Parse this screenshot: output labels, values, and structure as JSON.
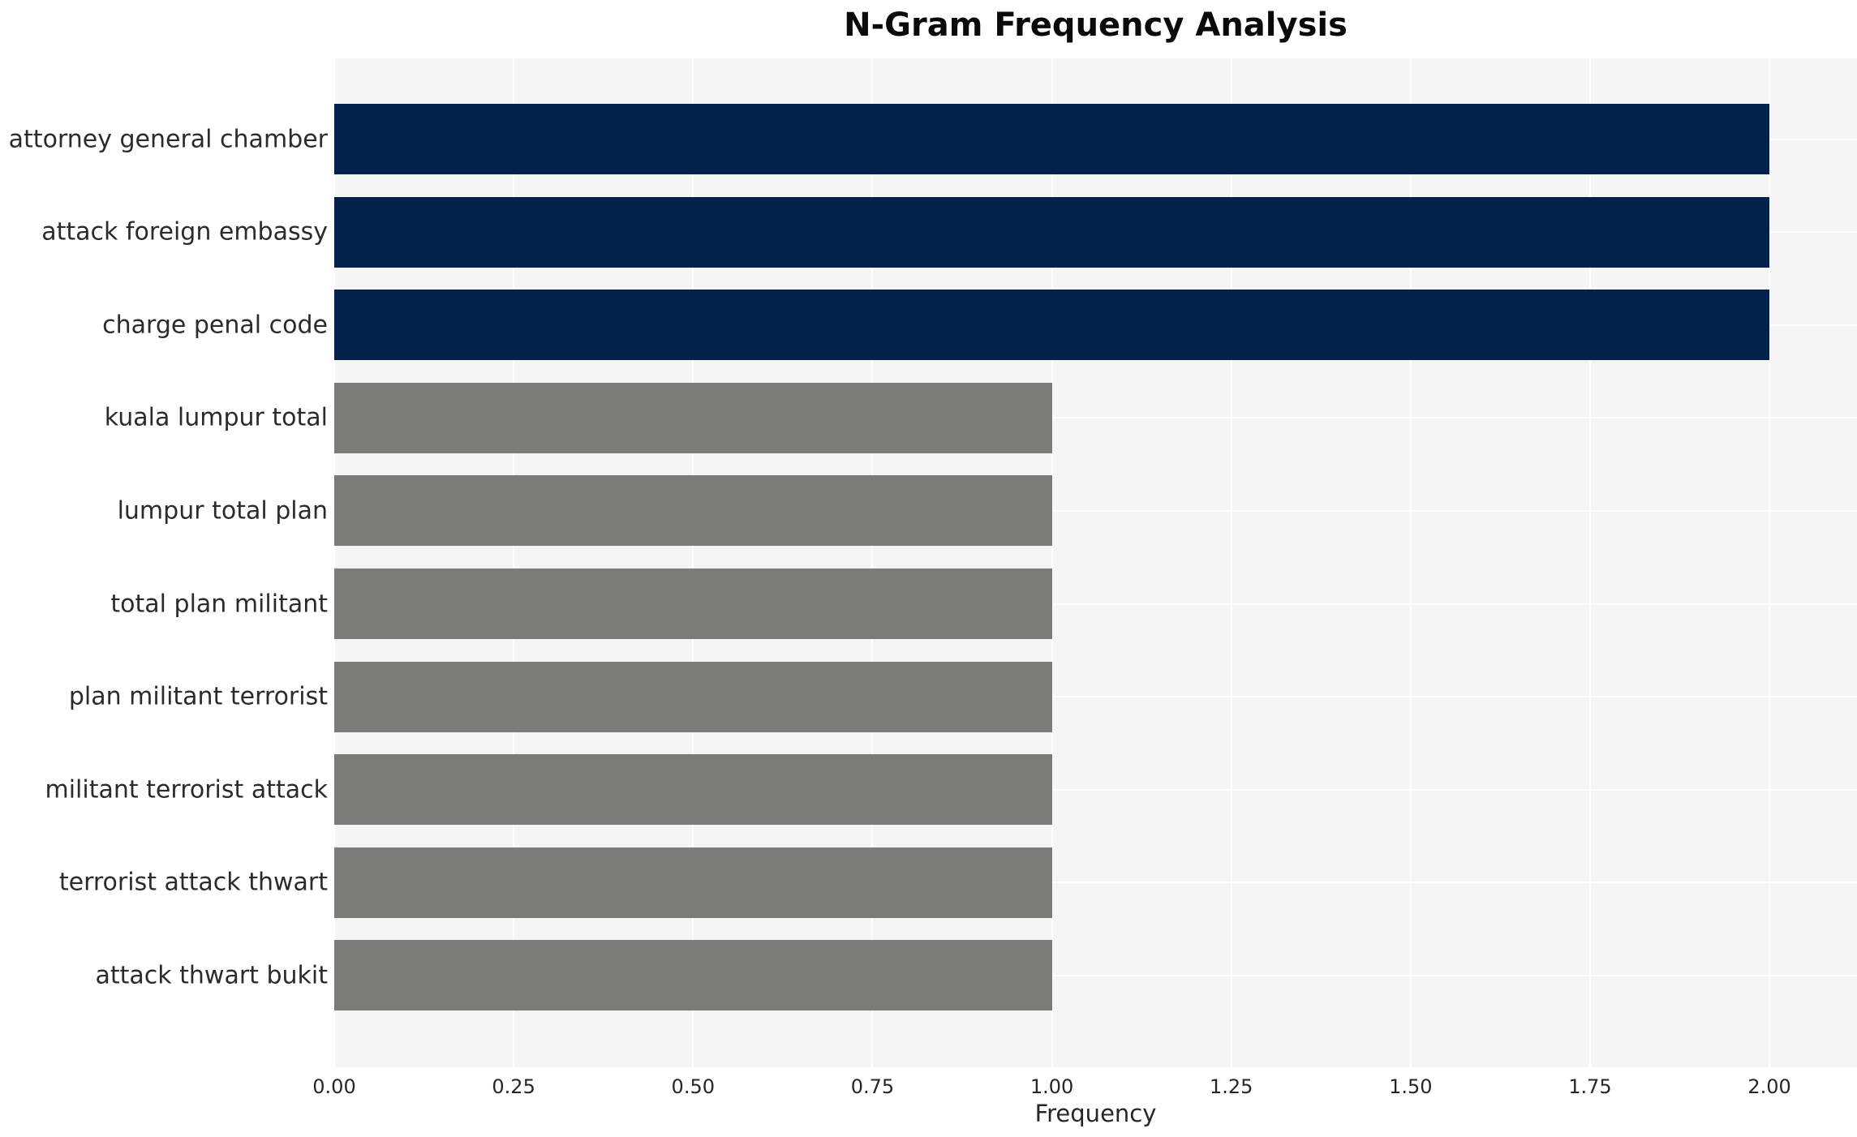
{
  "chart_data": {
    "type": "bar",
    "orientation": "horizontal",
    "title": "N-Gram Frequency Analysis",
    "xlabel": "Frequency",
    "ylabel": "",
    "categories": [
      "attorney general chamber",
      "attack foreign embassy",
      "charge penal code",
      "kuala lumpur total",
      "lumpur total plan",
      "total plan militant",
      "plan militant terrorist",
      "militant terrorist attack",
      "terrorist attack thwart",
      "attack thwart bukit"
    ],
    "values": [
      2.0,
      2.0,
      2.0,
      1.0,
      1.0,
      1.0,
      1.0,
      1.0,
      1.0,
      1.0
    ],
    "bar_colors": [
      "#02224c",
      "#02224c",
      "#02224c",
      "#7b7b78",
      "#7b7b78",
      "#7b7b78",
      "#7b7b78",
      "#7b7b78",
      "#7b7b78",
      "#7b7b78"
    ],
    "xticks": [
      0,
      0.25,
      0.5,
      0.75,
      1.0,
      1.25,
      1.5,
      1.75,
      2.0
    ],
    "xtick_labels": [
      "0.00",
      "0.25",
      "0.50",
      "0.75",
      "1.00",
      "1.25",
      "1.50",
      "1.75",
      "2.00"
    ],
    "xlim": [
      0,
      2.122
    ],
    "grid": true,
    "legend": false,
    "colors": {
      "highlight_navy": "#02224c",
      "base_gray": "#7b7b78",
      "plot_background": "#f5f5f5",
      "grid_line": "#ffffff",
      "text": "#262626"
    }
  }
}
